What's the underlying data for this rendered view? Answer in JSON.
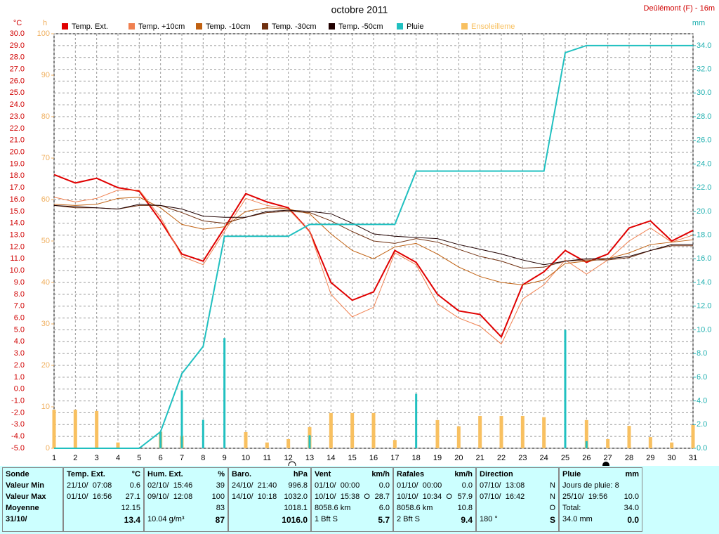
{
  "chart_data": {
    "type": "combo",
    "title": "octobre 2011",
    "station": "Deûlémont (F) - 16m",
    "y_label": "°C",
    "y3_label": "h",
    "y2_label": "mm",
    "x": [
      1,
      2,
      3,
      4,
      5,
      6,
      7,
      8,
      9,
      10,
      11,
      12,
      13,
      14,
      15,
      16,
      17,
      18,
      19,
      20,
      21,
      22,
      23,
      24,
      25,
      26,
      27,
      28,
      29,
      30,
      31
    ],
    "xlim": [
      1,
      31
    ],
    "ylim": [
      -5,
      30
    ],
    "yticks": [
      {
        "value": -5,
        "label": "-5.0"
      },
      {
        "value": -4,
        "label": "-4.0"
      },
      {
        "value": -3,
        "label": "-3.0"
      },
      {
        "value": -2,
        "label": "-2.0"
      },
      {
        "value": -1,
        "label": "-1.0"
      },
      {
        "value": 0,
        "label": "0.0"
      },
      {
        "value": 1,
        "label": "1.0"
      },
      {
        "value": 2,
        "label": "2.0"
      },
      {
        "value": 3,
        "label": "3.0"
      },
      {
        "value": 4,
        "label": "4.0"
      },
      {
        "value": 5,
        "label": "5.0"
      },
      {
        "value": 6,
        "label": "6.0"
      },
      {
        "value": 7,
        "label": "7.0"
      },
      {
        "value": 8,
        "label": "8.0"
      },
      {
        "value": 9,
        "label": "9.0"
      },
      {
        "value": 10,
        "label": "10.0"
      },
      {
        "value": 11,
        "label": "11.0"
      },
      {
        "value": 12,
        "label": "12.0"
      },
      {
        "value": 13,
        "label": "13.0"
      },
      {
        "value": 14,
        "label": "14.0"
      },
      {
        "value": 15,
        "label": "15.0"
      },
      {
        "value": 16,
        "label": "16.0"
      },
      {
        "value": 17,
        "label": "17.0"
      },
      {
        "value": 18,
        "label": "18.0"
      },
      {
        "value": 19,
        "label": "19.0"
      },
      {
        "value": 20,
        "label": "20.0"
      },
      {
        "value": 21,
        "label": "21.0"
      },
      {
        "value": 22,
        "label": "22.0"
      },
      {
        "value": 23,
        "label": "23.0"
      },
      {
        "value": 24,
        "label": "24.0"
      },
      {
        "value": 25,
        "label": "25.0"
      },
      {
        "value": 26,
        "label": "26.0"
      },
      {
        "value": 27,
        "label": "27.0"
      },
      {
        "value": 28,
        "label": "28.0"
      },
      {
        "value": 29,
        "label": "29.0"
      },
      {
        "value": 30,
        "label": "30.0"
      }
    ],
    "y2lim": [
      0,
      35
    ],
    "y2ticks": [
      {
        "value": 0,
        "label": "0.0"
      },
      {
        "value": 2,
        "label": "2.0"
      },
      {
        "value": 4,
        "label": "4.0"
      },
      {
        "value": 6,
        "label": "6.0"
      },
      {
        "value": 8,
        "label": "8.0"
      },
      {
        "value": 10,
        "label": "10.0"
      },
      {
        "value": 12,
        "label": "12.0"
      },
      {
        "value": 14,
        "label": "14.0"
      },
      {
        "value": 16,
        "label": "16.0"
      },
      {
        "value": 18,
        "label": "18.0"
      },
      {
        "value": 20,
        "label": "20.0"
      },
      {
        "value": 22,
        "label": "22.0"
      },
      {
        "value": 24,
        "label": "24.0"
      },
      {
        "value": 26,
        "label": "26.0"
      },
      {
        "value": 28,
        "label": "28.0"
      },
      {
        "value": 30,
        "label": "30.0"
      },
      {
        "value": 32,
        "label": "32.0"
      },
      {
        "value": 34,
        "label": "34.0"
      }
    ],
    "y3lim": [
      0,
      100
    ],
    "y3ticks": [
      0,
      10,
      20,
      30,
      40,
      50,
      60,
      70,
      80,
      90,
      100
    ],
    "grid": true,
    "series": [
      {
        "name": "Temp. Ext.",
        "color": "#e00000",
        "type": "line",
        "width": 2,
        "values": [
          18.1,
          17.4,
          17.8,
          17.0,
          16.7,
          14.2,
          11.4,
          10.8,
          13.6,
          16.5,
          15.8,
          15.3,
          13.3,
          9.0,
          7.5,
          8.2,
          11.7,
          10.7,
          8.0,
          6.6,
          6.3,
          4.4,
          8.8,
          9.9,
          11.7,
          10.7,
          11.4,
          13.6,
          14.2,
          12.5,
          13.4
        ]
      },
      {
        "name": "Temp. +10cm",
        "color": "#f08050",
        "type": "line",
        "width": 1,
        "values": [
          16.2,
          15.8,
          16.1,
          16.8,
          16.8,
          14.5,
          11.2,
          10.5,
          13.3,
          16.1,
          15.5,
          15.2,
          13.3,
          8.0,
          6.1,
          6.9,
          11.5,
          10.5,
          7.2,
          6.0,
          5.3,
          3.8,
          7.6,
          8.8,
          10.9,
          9.7,
          10.9,
          12.5,
          13.6,
          12.4,
          13.0
        ]
      },
      {
        "name": "Temp. -10cm",
        "color": "#c06010",
        "type": "line",
        "width": 1,
        "values": [
          15.6,
          15.5,
          15.6,
          16.1,
          16.2,
          15.3,
          13.9,
          13.5,
          13.7,
          15.0,
          15.3,
          15.2,
          14.8,
          13.1,
          11.7,
          11.0,
          12.0,
          12.3,
          11.4,
          10.3,
          9.5,
          9.0,
          8.8,
          9.2,
          10.6,
          10.8,
          11.0,
          11.5,
          12.2,
          12.4,
          12.6
        ]
      },
      {
        "name": "Temp. -30cm",
        "color": "#703010",
        "type": "line",
        "width": 1,
        "values": [
          15.5,
          15.3,
          15.3,
          15.2,
          15.5,
          15.5,
          14.9,
          14.2,
          14.0,
          14.5,
          14.9,
          15.0,
          14.9,
          14.2,
          13.3,
          12.5,
          12.3,
          12.7,
          12.4,
          11.8,
          11.2,
          10.8,
          10.2,
          10.3,
          10.8,
          10.9,
          10.9,
          11.1,
          11.7,
          12.1,
          12.1
        ]
      },
      {
        "name": "Temp. -50cm",
        "color": "#200000",
        "type": "line",
        "width": 1,
        "values": [
          15.5,
          15.4,
          15.3,
          15.2,
          15.6,
          15.5,
          15.2,
          14.6,
          14.5,
          14.5,
          15.0,
          15.1,
          15.0,
          14.8,
          14.0,
          13.1,
          12.9,
          12.8,
          12.7,
          12.2,
          11.8,
          11.4,
          10.9,
          10.5,
          10.8,
          11.0,
          11.0,
          11.2,
          11.7,
          12.2,
          12.2
        ]
      },
      {
        "name": "Pluie",
        "color": "#20c0c0",
        "type": "line",
        "width": 2,
        "axis": "y2",
        "values": [
          0,
          0,
          0,
          0,
          0,
          1.4,
          6.3,
          8.6,
          17.9,
          17.9,
          17.9,
          17.9,
          18.9,
          18.9,
          18.9,
          18.9,
          18.9,
          23.4,
          23.4,
          23.4,
          23.4,
          23.4,
          23.4,
          23.4,
          33.4,
          34.0,
          34.0,
          34.0,
          34.0,
          34.0,
          34.0
        ]
      },
      {
        "name": "Ensoleilleme",
        "color": "#f8c060",
        "type": "bar",
        "axis": "y3",
        "values": [
          9.3,
          9.3,
          9.0,
          1.4,
          0,
          4.0,
          3.0,
          0,
          0,
          3.9,
          1.4,
          2.2,
          5.1,
          8.5,
          8.5,
          8.5,
          2.0,
          0,
          6.8,
          5.3,
          7.8,
          7.8,
          7.8,
          7.5,
          0,
          6.8,
          2.2,
          5.4,
          2.7,
          1.4,
          5.6
        ]
      },
      {
        "color": "#20c0c0",
        "type": "bar",
        "axis": "y2",
        "values": [
          0,
          0,
          0,
          0,
          0,
          1.4,
          4.9,
          2.4,
          9.3,
          0,
          0,
          0,
          1.1,
          0,
          0,
          0,
          0,
          4.6,
          0,
          0,
          0,
          0,
          0,
          0,
          10.0,
          0.6,
          0,
          0,
          0,
          0,
          0
        ]
      }
    ]
  },
  "stats": {
    "row_labels": [
      "Sonde",
      "Valeur Min",
      "Valeur Max",
      "Moyenne",
      "31/10/"
    ],
    "columns": [
      {
        "name": "Temp. Ext.",
        "unit": "°C",
        "rows": [
          {
            "left": "21/10/  07:08",
            "right": "0.6"
          },
          {
            "left": "01/10/  16:56",
            "right": "27.1"
          },
          {
            "right": "12.15"
          },
          {
            "right": "13.4"
          }
        ]
      },
      {
        "name": "Hum. Ext.",
        "unit": "%",
        "rows": [
          {
            "left": "02/10/  15:46",
            "right": "39"
          },
          {
            "left": "09/10/  12:08",
            "right": "100"
          },
          {
            "right": "83"
          },
          {
            "left": "10.04 g/m³",
            "right": "87"
          }
        ]
      },
      {
        "name": "Baro.",
        "unit": "hPa",
        "rows": [
          {
            "left": "24/10/  21:40",
            "right": "996.8"
          },
          {
            "left": "14/10/  10:18",
            "right": "1032.0"
          },
          {
            "right": "1018.1"
          },
          {
            "right": "1016.0"
          }
        ]
      },
      {
        "name": "Vent",
        "unit": "km/h",
        "rows": [
          {
            "left": "01/10/  00:00",
            "right": "0.0"
          },
          {
            "left": "10/10/  15:38  O",
            "right": "28.7"
          },
          {
            "left": "8058.6 km",
            "right": "6.0"
          },
          {
            "left": "1 Bft S",
            "right": "5.7"
          }
        ]
      },
      {
        "name": "Rafales",
        "unit": "km/h",
        "rows": [
          {
            "left": "01/10/  00:00",
            "right": "0.0"
          },
          {
            "left": "10/10/  10:34  O",
            "right": "57.9"
          },
          {
            "left": "8058.6 km",
            "right": "10.8"
          },
          {
            "left": "2 Bft S",
            "right": "9.4"
          }
        ]
      },
      {
        "name": "Direction",
        "rows": [
          {
            "left": "07/10/  13:08",
            "right": "N"
          },
          {
            "left": "07/10/  16:42",
            "right": "N"
          },
          {
            "right": "O"
          },
          {
            "left": "180 °",
            "right": "S"
          }
        ]
      },
      {
        "name": "Pluie",
        "unit": "mm",
        "rows": [
          {
            "left": "Jours de pluie: 8"
          },
          {
            "left": "25/10/  19:56",
            "right": "10.0"
          },
          {
            "left": "Total:",
            "right": "34.0"
          },
          {
            "left": "34.0 mm",
            "right": "0.0"
          }
        ]
      }
    ]
  }
}
